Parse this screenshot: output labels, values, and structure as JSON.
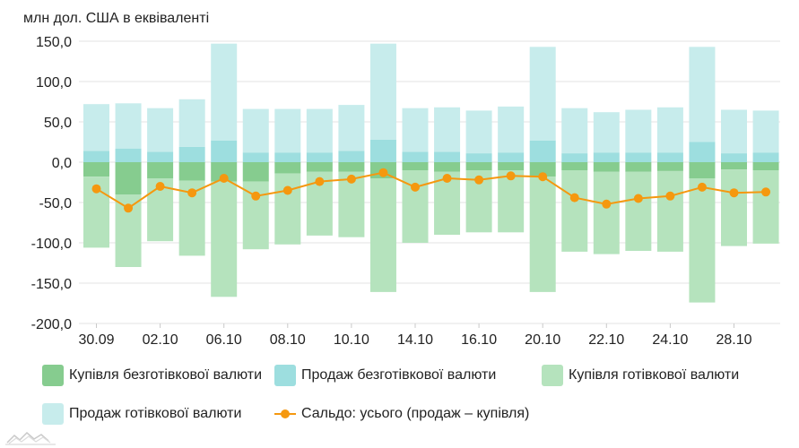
{
  "colors": {
    "noncash_buy": "#86cc8f",
    "noncash_sell": "#9ddedf",
    "cash_buy": "#b5e3bd",
    "cash_sell": "#c7ecec",
    "balance": "#f5980f",
    "grid": "#e3e3e3"
  },
  "chart_data": {
    "type": "bar",
    "stacked": true,
    "ylabel": "млн дол. США в еквіваленті",
    "ylim": [
      -200,
      150
    ],
    "yticks": [
      "150,0",
      "100,0",
      "50,0",
      "0,0",
      "-50,0",
      "-100,0",
      "-150,0",
      "-200,0"
    ],
    "ytick_values": [
      150,
      100,
      50,
      0,
      -50,
      -100,
      -150,
      -200
    ],
    "x_tick_labels": [
      "30.09",
      "",
      "02.10",
      "",
      "06.10",
      "",
      "08.10",
      "",
      "10.10",
      "",
      "14.10",
      "",
      "16.10",
      "",
      "20.10",
      "",
      "22.10",
      "",
      "24.10",
      "",
      "28.10",
      ""
    ],
    "grid": "horizontal",
    "legend_position": "bottom",
    "series": [
      {
        "key": "noncash_sell",
        "name": "Продаж безготівкової валюти",
        "values": [
          14,
          17,
          13,
          19,
          27,
          12,
          12,
          12,
          14,
          28,
          13,
          13,
          11,
          12,
          27,
          11,
          12,
          12,
          12,
          25,
          11,
          12
        ]
      },
      {
        "key": "cash_sell",
        "name": "Продаж готівкової валюти",
        "values": [
          58,
          56,
          54,
          59,
          120,
          54,
          54,
          54,
          57,
          119,
          54,
          55,
          53,
          57,
          116,
          56,
          50,
          53,
          56,
          118,
          54,
          52
        ]
      },
      {
        "key": "noncash_buy",
        "name": "Купівля безготівкової валюти",
        "values": [
          -18,
          -40,
          -20,
          -23,
          -24,
          -24,
          -14,
          -12,
          -12,
          -20,
          -10,
          -12,
          -10,
          -10,
          -18,
          -10,
          -12,
          -12,
          -11,
          -20,
          -9,
          -10
        ]
      },
      {
        "key": "cash_buy",
        "name": "Купівля готівкової валюти",
        "values": [
          -88,
          -90,
          -78,
          -93,
          -143,
          -84,
          -88,
          -79,
          -81,
          -141,
          -90,
          -78,
          -77,
          -77,
          -143,
          -101,
          -102,
          -98,
          -100,
          -154,
          -95,
          -91
        ]
      },
      {
        "key": "balance",
        "name": "Сальдо: усього (продаж – купівля)",
        "type": "line",
        "values": [
          -33,
          -57,
          -30,
          -38,
          -20,
          -42,
          -35,
          -24,
          -21,
          -13,
          -31,
          -20,
          -22,
          -17,
          -18,
          -44,
          -52,
          -45,
          -42,
          -31,
          -38,
          -37
        ]
      }
    ]
  },
  "legend": {
    "noncash_buy": "Купівля безготівкової валюти",
    "noncash_sell": "Продаж безготівкової валюти",
    "cash_buy": "Купівля готівкової валюти",
    "cash_sell": "Продаж готівкової валюти",
    "balance": "Сальдо: усього (продаж – купівля)"
  }
}
